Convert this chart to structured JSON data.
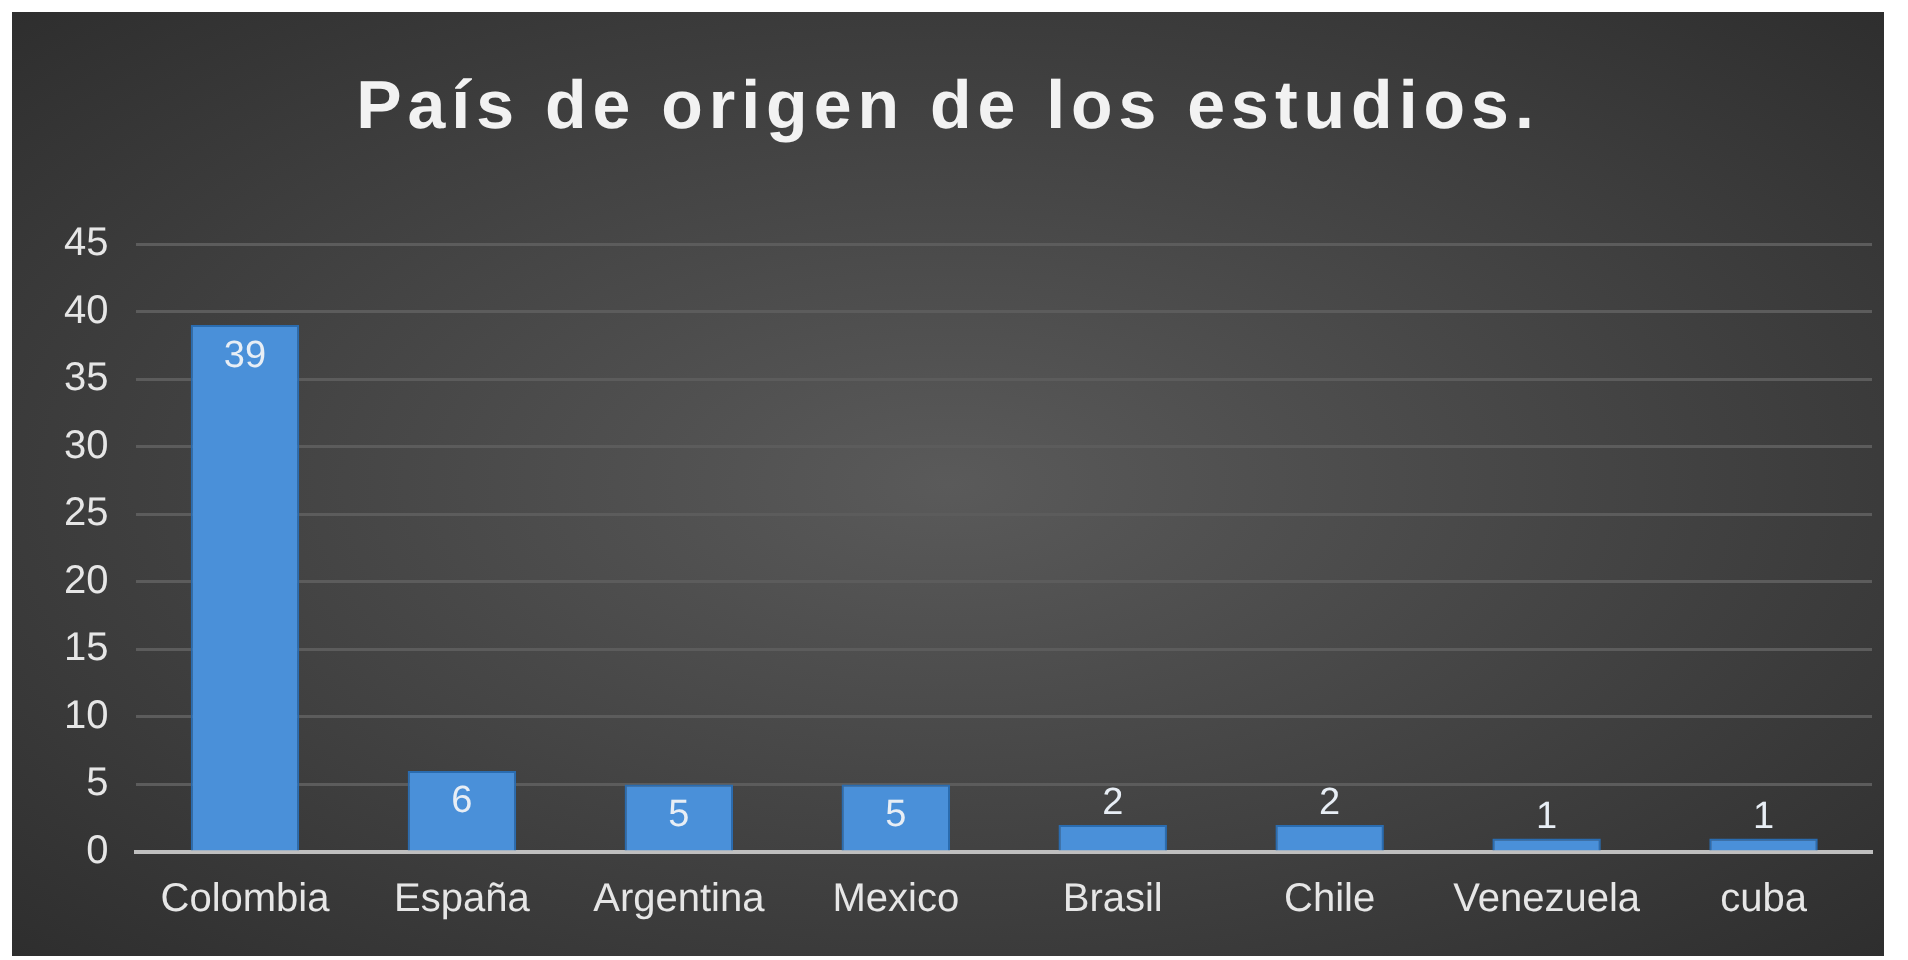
{
  "chart_data": {
    "type": "bar",
    "title": "País de origen de los estudios.",
    "categories": [
      "Colombia",
      "España",
      "Argentina",
      "Mexico",
      "Brasil",
      "Chile",
      "Venezuela",
      "cuba"
    ],
    "values": [
      39,
      6,
      5,
      5,
      2,
      2,
      1,
      1
    ],
    "color": "#4a90d9",
    "ylim": [
      0,
      45
    ],
    "yticks": [
      0,
      5,
      10,
      15,
      20,
      25,
      30,
      35,
      40,
      45
    ],
    "grid": "y",
    "data_labels": true
  }
}
